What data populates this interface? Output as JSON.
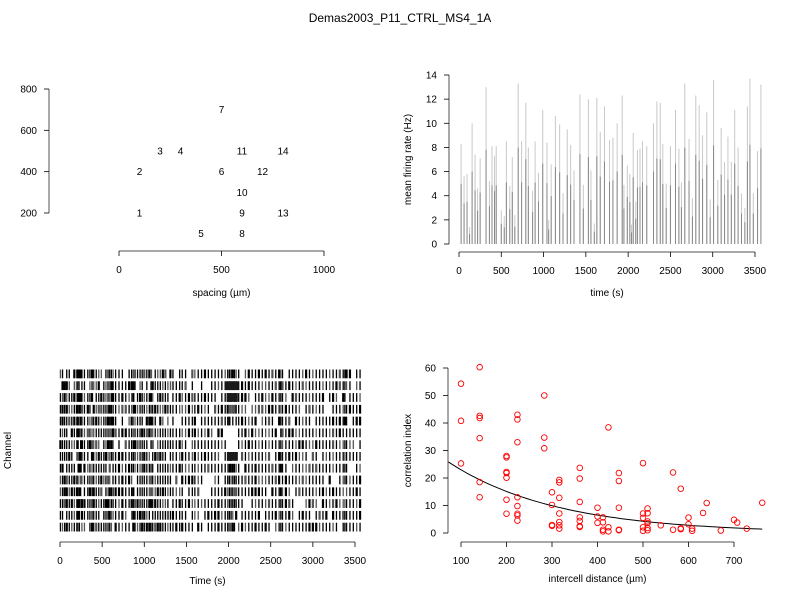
{
  "title": "Demas2003_P11_CTRL_MS4_1A",
  "chart_data": [
    {
      "id": "layout",
      "type": "scatter",
      "title": "",
      "xlabel": "spacing (µm)",
      "ylabel": "",
      "xlim": [
        0,
        1000
      ],
      "ylim": [
        200,
        800
      ],
      "xticks": [
        0,
        500,
        1000
      ],
      "yticks": [
        200,
        400,
        600,
        800
      ],
      "marker": "text-label",
      "points": [
        {
          "label": "1",
          "x": 100,
          "y": 200
        },
        {
          "label": "2",
          "x": 100,
          "y": 400
        },
        {
          "label": "3",
          "x": 200,
          "y": 500
        },
        {
          "label": "4",
          "x": 300,
          "y": 500
        },
        {
          "label": "5",
          "x": 400,
          "y": 100
        },
        {
          "label": "6",
          "x": 500,
          "y": 400
        },
        {
          "label": "7",
          "x": 500,
          "y": 700
        },
        {
          "label": "8",
          "x": 600,
          "y": 100
        },
        {
          "label": "9",
          "x": 600,
          "y": 200
        },
        {
          "label": "10",
          "x": 600,
          "y": 300
        },
        {
          "label": "11",
          "x": 600,
          "y": 500
        },
        {
          "label": "12",
          "x": 700,
          "y": 400
        },
        {
          "label": "13",
          "x": 800,
          "y": 200
        },
        {
          "label": "14",
          "x": 800,
          "y": 500
        }
      ]
    },
    {
      "id": "firing-rate",
      "type": "bar",
      "title": "",
      "xlabel": "time (s)",
      "ylabel": "mean firing rate (Hz)",
      "xlim": [
        0,
        3500
      ],
      "ylim": [
        0,
        14
      ],
      "xticks": [
        0,
        500,
        1000,
        1500,
        2000,
        2500,
        3000,
        3500
      ],
      "yticks": [
        0,
        2,
        4,
        6,
        8,
        10,
        12,
        14
      ],
      "color": "#808080",
      "x": [
        25,
        60,
        95,
        125,
        155,
        190,
        220,
        250,
        320,
        360,
        390,
        420,
        440,
        500,
        535,
        560,
        600,
        630,
        660,
        700,
        740,
        790,
        820,
        870,
        900,
        940,
        990,
        1040,
        1060,
        1090,
        1140,
        1190,
        1230,
        1280,
        1320,
        1360,
        1430,
        1470,
        1530,
        1560,
        1600,
        1630,
        1670,
        1720,
        1780,
        1820,
        1870,
        1930,
        1950,
        1990,
        2020,
        2040,
        2060,
        2090,
        2110,
        2140,
        2170,
        2220,
        2300,
        2340,
        2380,
        2410,
        2450,
        2500,
        2560,
        2600,
        2630,
        2670,
        2720,
        2760,
        2800,
        2840,
        2880,
        2930,
        2970,
        3010,
        3060,
        3100,
        3140,
        3180,
        3220,
        3260,
        3300,
        3340,
        3380,
        3410,
        3440,
        3480,
        3530,
        3570
      ],
      "values": [
        8.3,
        5.6,
        5.8,
        1.4,
        10.0,
        7.4,
        4.6,
        7.1,
        13.0,
        5.2,
        8.1,
        7.3,
        8.1,
        2.8,
        2.3,
        8.5,
        4.8,
        7.2,
        2.4,
        13.3,
        8.5,
        11.7,
        8.0,
        4.4,
        8.5,
        5.9,
        11.1,
        8.4,
        2.0,
        6.6,
        10.6,
        9.9,
        4.2,
        9.5,
        8.2,
        6.1,
        12.4,
        4.9,
        12.0,
        6.1,
        1.7,
        12.1,
        9.3,
        11.4,
        8.6,
        8.8,
        10.0,
        12.3,
        4.9,
        6.5,
        5.8,
        1.6,
        9.2,
        3.5,
        7.8,
        7.9,
        8.5,
        8.1,
        10.0,
        11.8,
        11.7,
        8.3,
        5.0,
        8.1,
        11.1,
        7.9,
        5.1,
        13.3,
        8.7,
        3.8,
        12.3,
        11.5,
        9.0,
        10.9,
        3.7,
        13.6,
        5.3,
        9.6,
        6.8,
        8.9,
        6.8,
        11.1,
        8.0,
        4.2,
        3.0,
        11.4,
        13.7,
        4.2,
        7.7,
        13.2
      ]
    },
    {
      "id": "raster",
      "type": "heatmap",
      "title": "",
      "xlabel": "Time (s)",
      "ylabel": "Channel",
      "xlim": [
        0,
        3600
      ],
      "xticks": [
        0,
        500,
        1000,
        1500,
        2000,
        2500,
        3000,
        3500
      ],
      "channels": 14,
      "burst_times": [
        5,
        30,
        55,
        80,
        110,
        140,
        170,
        200,
        215,
        230,
        245,
        260,
        290,
        330,
        355,
        380,
        400,
        430,
        460,
        490,
        520,
        545,
        570,
        590,
        610,
        630,
        660,
        700,
        740,
        780,
        820,
        850,
        870,
        890,
        920,
        950,
        975,
        1000,
        1030,
        1060,
        1080,
        1100,
        1130,
        1160,
        1190,
        1220,
        1250,
        1280,
        1310,
        1340,
        1380,
        1420,
        1450,
        1490,
        1530,
        1570,
        1600,
        1640,
        1680,
        1720,
        1760,
        1800,
        1840,
        1880,
        1920,
        1960,
        1990,
        2010,
        2030,
        2050,
        2070,
        2090,
        2120,
        2160,
        2200,
        2240,
        2280,
        2320,
        2360,
        2400,
        2440,
        2480,
        2520,
        2560,
        2600,
        2620,
        2640,
        2680,
        2720,
        2760,
        2800,
        2840,
        2880,
        2920,
        2960,
        3000,
        3040,
        3080,
        3120,
        3160,
        3200,
        3240,
        3280,
        3320,
        3360,
        3380,
        3400,
        3440,
        3480,
        3520,
        3560
      ],
      "dense_regions": [
        {
          "channel": 2,
          "from": 1980,
          "to": 2110
        },
        {
          "channel": 7,
          "from": 1980,
          "to": 2110
        },
        {
          "channel": 1,
          "from": 1960,
          "to": 2120
        }
      ],
      "silent_regions": [
        {
          "channel": 5,
          "from": 1970,
          "to": 2110
        },
        {
          "channel": 6,
          "from": 1970,
          "to": 2110
        }
      ]
    },
    {
      "id": "correlation",
      "type": "scatter",
      "title": "",
      "xlabel": "intercell distance (µm)",
      "ylabel": "correlation index",
      "xlim": [
        100,
        762
      ],
      "ylim": [
        0,
        60
      ],
      "xticks": [
        100,
        200,
        300,
        400,
        500,
        600,
        700
      ],
      "yticks": [
        0,
        10,
        20,
        30,
        40,
        50,
        60
      ],
      "marker_color": "#ff0000",
      "fit_line": {
        "type": "exponential",
        "a": 35,
        "b": 0.0042,
        "x_from": 72,
        "x_to": 762,
        "color": "#000000"
      },
      "points": [
        [
          100,
          54.3
        ],
        [
          100,
          40.8
        ],
        [
          100,
          25.3
        ],
        [
          141,
          60.3
        ],
        [
          141,
          42.6
        ],
        [
          141,
          41.8
        ],
        [
          141,
          34.5
        ],
        [
          141,
          18.5
        ],
        [
          141,
          13.0
        ],
        [
          200,
          28.0
        ],
        [
          200,
          27.5
        ],
        [
          200,
          22.2
        ],
        [
          200,
          21.8
        ],
        [
          200,
          20.1
        ],
        [
          200,
          12.1
        ],
        [
          200,
          7.0
        ],
        [
          224,
          43.0
        ],
        [
          224,
          41.3
        ],
        [
          224,
          33.0
        ],
        [
          224,
          13.0
        ],
        [
          224,
          9.8
        ],
        [
          224,
          7.0
        ],
        [
          224,
          6.4
        ],
        [
          224,
          4.5
        ],
        [
          283,
          50.0
        ],
        [
          283,
          34.7
        ],
        [
          283,
          30.8
        ],
        [
          300,
          14.8
        ],
        [
          300,
          10.2
        ],
        [
          300,
          2.9
        ],
        [
          300,
          2.6
        ],
        [
          316,
          19.3
        ],
        [
          316,
          18.4
        ],
        [
          316,
          12.8
        ],
        [
          316,
          7.1
        ],
        [
          316,
          4.0
        ],
        [
          316,
          2.8
        ],
        [
          316,
          1.6
        ],
        [
          361,
          23.7
        ],
        [
          361,
          19.8
        ],
        [
          361,
          11.3
        ],
        [
          361,
          5.7
        ],
        [
          361,
          4.4
        ],
        [
          361,
          2.5
        ],
        [
          361,
          2.2
        ],
        [
          400,
          9.2
        ],
        [
          400,
          6.0
        ],
        [
          400,
          3.7
        ],
        [
          412,
          5.7
        ],
        [
          412,
          3.9
        ],
        [
          412,
          1.2
        ],
        [
          412,
          0.6
        ],
        [
          424,
          38.4
        ],
        [
          424,
          2.1
        ],
        [
          424,
          0.6
        ],
        [
          447,
          21.8
        ],
        [
          447,
          18.9
        ],
        [
          447,
          9.2
        ],
        [
          447,
          1.2
        ],
        [
          447,
          1.0
        ],
        [
          500,
          25.4
        ],
        [
          500,
          7.1
        ],
        [
          500,
          5.5
        ],
        [
          500,
          2.1
        ],
        [
          500,
          0.8
        ],
        [
          510,
          8.9
        ],
        [
          510,
          7.2
        ],
        [
          510,
          4.2
        ],
        [
          510,
          3.6
        ],
        [
          510,
          1.8
        ],
        [
          510,
          1.0
        ],
        [
          539,
          2.8
        ],
        [
          566,
          22.0
        ],
        [
          566,
          1.2
        ],
        [
          583,
          16.1
        ],
        [
          583,
          1.7
        ],
        [
          583,
          1.4
        ],
        [
          600,
          5.6
        ],
        [
          600,
          3.2
        ],
        [
          608,
          1.6
        ],
        [
          608,
          0.8
        ],
        [
          632,
          7.3
        ],
        [
          640,
          10.9
        ],
        [
          671,
          0.9
        ],
        [
          700,
          4.8
        ],
        [
          707,
          3.8
        ],
        [
          728,
          1.6
        ],
        [
          762,
          11.0
        ]
      ]
    }
  ]
}
